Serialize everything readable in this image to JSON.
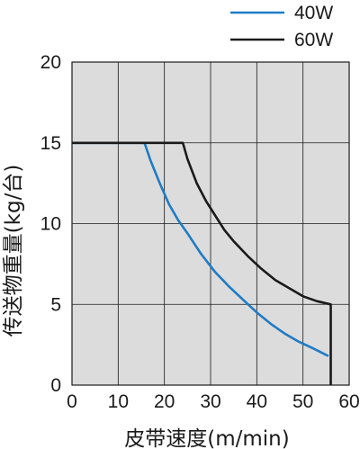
{
  "chart_data": {
    "type": "line",
    "xlabel": "皮带速度(m/min)",
    "ylabel": "传送物重量(kg/台)",
    "xlim": [
      0,
      60
    ],
    "ylim": [
      0,
      20
    ],
    "xticks": [
      "0",
      "10",
      "20",
      "30",
      "40",
      "50",
      "60"
    ],
    "yticks": [
      "0",
      "5",
      "10",
      "15",
      "20"
    ],
    "grid": true,
    "background": "#dcdcdc",
    "legend_position": "top-right",
    "series": [
      {
        "name": "40W",
        "color": "#1f7bc4",
        "x": [
          0,
          15.7,
          17,
          19,
          21,
          23,
          25,
          28,
          31,
          34,
          37,
          40,
          43,
          46,
          49,
          52,
          55.5
        ],
        "y": [
          15,
          15,
          13.9,
          12.5,
          11.2,
          10.2,
          9.4,
          8.1,
          7.0,
          6.1,
          5.3,
          4.5,
          3.8,
          3.2,
          2.7,
          2.3,
          1.8
        ]
      },
      {
        "name": "60W",
        "color": "#1a1a1a",
        "x": [
          0,
          24,
          25,
          27,
          29,
          31,
          33,
          35,
          38,
          41,
          44,
          47,
          50,
          53,
          56,
          56,
          56
        ],
        "y": [
          15,
          15,
          14.0,
          12.5,
          11.4,
          10.5,
          9.6,
          8.9,
          8.0,
          7.2,
          6.5,
          6.0,
          5.5,
          5.2,
          5.0,
          2.0,
          0
        ]
      }
    ]
  }
}
